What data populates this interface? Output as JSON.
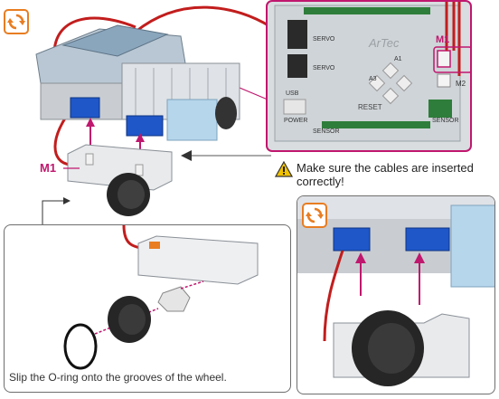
{
  "labels": {
    "m1_main": "M1",
    "m1_inset": "M1",
    "m2_inset": "M2",
    "board_brand": "ArTec",
    "board_servo_1": "SERVO",
    "board_servo_2": "SERVO",
    "board_usb": "USB",
    "board_power": "POWER",
    "board_reset": "RESET",
    "board_sensor_1": "SENSOR",
    "board_sensor_2": "SENSOR",
    "board_a3": "A3",
    "board_a1": "A1"
  },
  "warning": {
    "icon": "warning-triangle-icon",
    "text": "Make sure the cables are inserted correctly!"
  },
  "caption": "Slip the O-ring onto the grooves of the wheel.",
  "icons": {
    "rotate": "rotate-arrows-icon"
  },
  "colors": {
    "accent_orange": "#e87d22",
    "accent_magenta": "#c0176e",
    "motor_blue": "#1f57c9",
    "cable_red": "#c21d1d"
  }
}
